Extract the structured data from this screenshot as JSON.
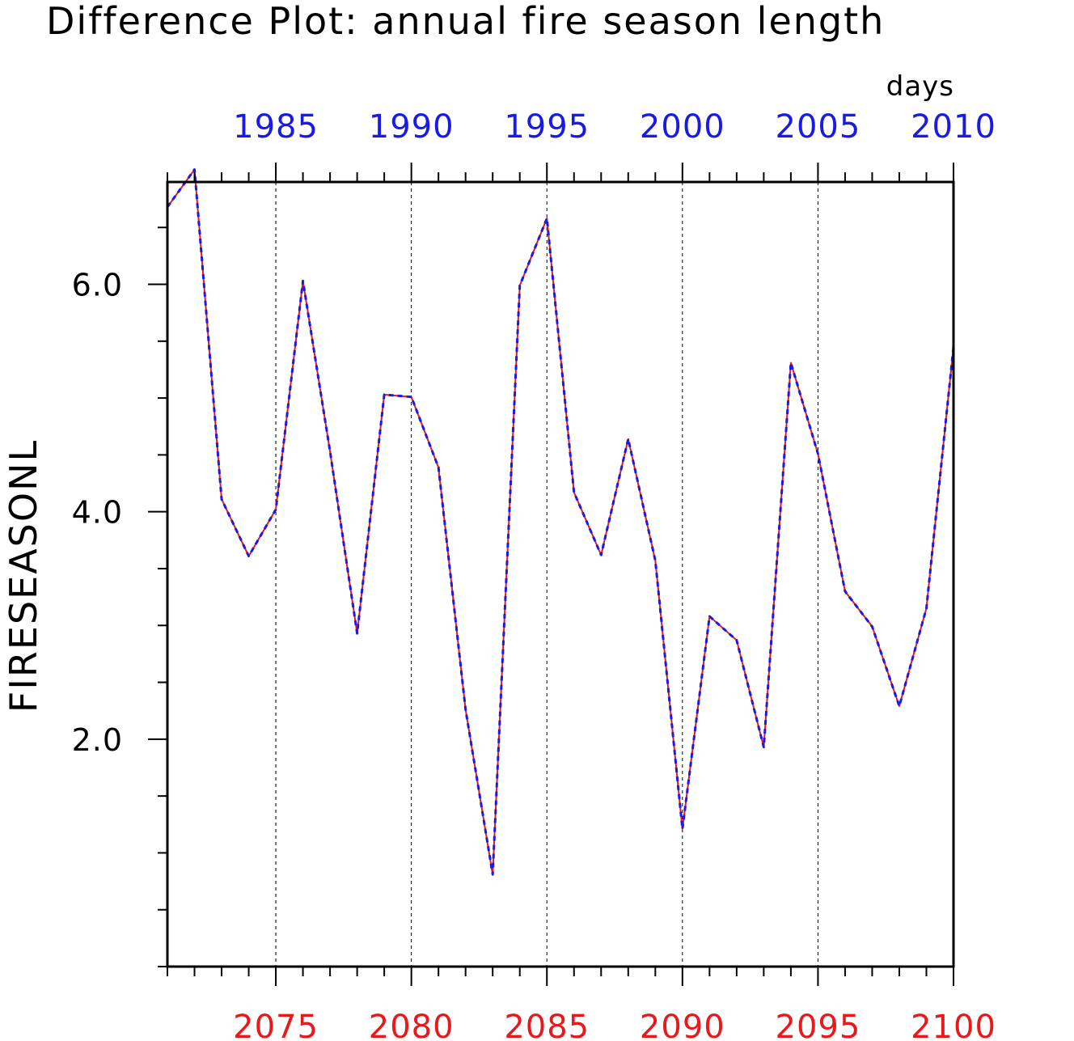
{
  "chart_data": {
    "type": "line",
    "title": "Difference Plot: annual fire season length",
    "units": "days",
    "ylabel": "FIRESEASONL",
    "ylim": [
      0.0,
      6.9
    ],
    "yticks_major": [
      2.0,
      4.0,
      6.0
    ],
    "ytick_labels": [
      "2.0",
      "4.0",
      "6.0"
    ],
    "yticks_minor_step": 0.5,
    "x_bottom": {
      "range": [
        2071,
        2100
      ],
      "tick_values": [
        2075,
        2080,
        2085,
        2090,
        2095,
        2100
      ],
      "tick_labels": [
        "2075",
        "2080",
        "2085",
        "2090",
        "2095",
        "2100"
      ],
      "color": "#e8191b"
    },
    "x_top": {
      "range": [
        1981,
        2010
      ],
      "tick_values": [
        1985,
        1990,
        1995,
        2000,
        2005,
        2010
      ],
      "tick_labels": [
        "1985",
        "1990",
        "1995",
        "2000",
        "2005",
        "2010"
      ],
      "color": "#1a1ae6"
    },
    "vertical_gridlines": [
      2075,
      2080,
      2085,
      2090,
      2095
    ],
    "x": [
      2071,
      2072,
      2073,
      2074,
      2075,
      2076,
      2077,
      2078,
      2079,
      2080,
      2081,
      2082,
      2083,
      2084,
      2085,
      2086,
      2087,
      2088,
      2089,
      2090,
      2091,
      2092,
      2093,
      2094,
      2095,
      2096,
      2097,
      2098,
      2099,
      2100
    ],
    "series": [
      {
        "values": [
          6.68,
          7.01,
          4.11,
          3.61,
          4.02,
          6.03,
          4.53,
          2.93,
          5.03,
          5.01,
          4.39,
          2.26,
          0.81,
          5.99,
          6.58,
          4.17,
          3.62,
          4.64,
          3.57,
          1.21,
          3.08,
          2.87,
          1.93,
          5.31,
          4.51,
          3.3,
          2.99,
          2.29,
          3.15,
          5.45
        ],
        "color": "#e8191b",
        "style": "solid"
      },
      {
        "values": [
          6.68,
          7.01,
          4.11,
          3.61,
          4.02,
          6.03,
          4.53,
          2.93,
          5.03,
          5.01,
          4.39,
          2.26,
          0.81,
          5.99,
          6.58,
          4.17,
          3.62,
          4.64,
          3.57,
          1.21,
          3.08,
          2.87,
          1.93,
          5.31,
          4.51,
          3.3,
          2.99,
          2.29,
          3.15,
          5.45
        ],
        "color": "#1a1ae6",
        "style": "dashed"
      }
    ],
    "grid": "vertical-dashed",
    "legend": "none"
  }
}
